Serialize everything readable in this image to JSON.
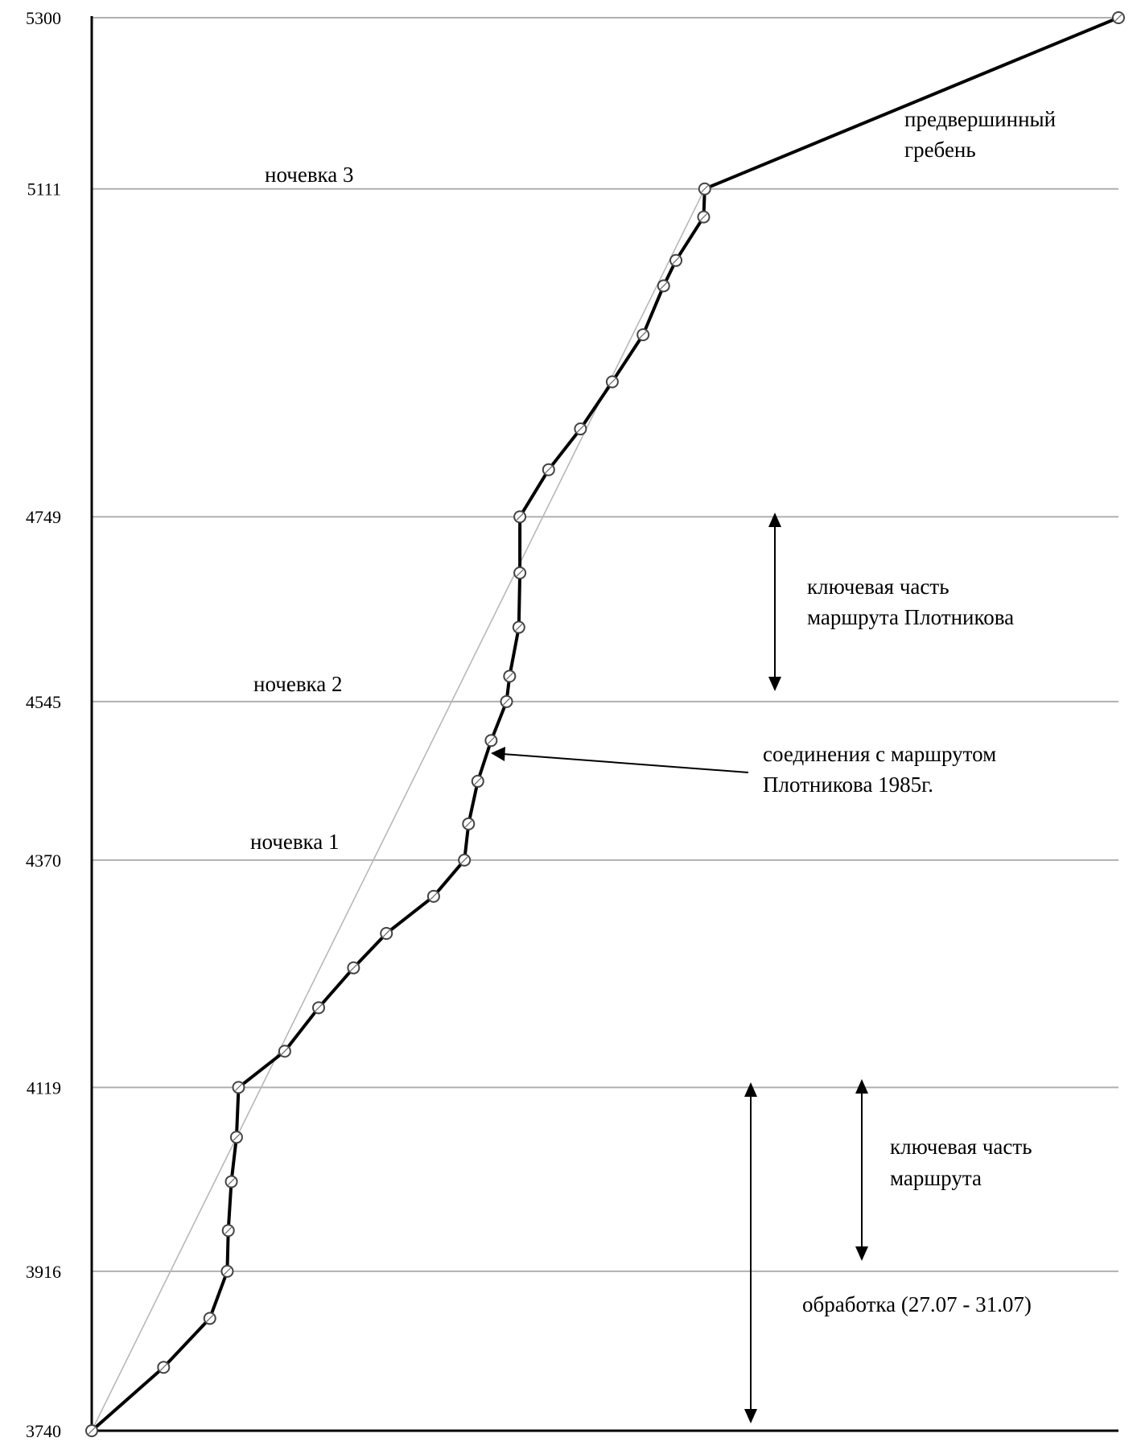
{
  "chart_data": {
    "type": "line",
    "title": "",
    "xlabel": "",
    "ylabel": "",
    "ylim": [
      3740,
      5300
    ],
    "xlim": [
      0,
      100
    ],
    "y_ticks": [
      "5300",
      "5111",
      "4749",
      "4545",
      "4370",
      "4119",
      "3916",
      "3740"
    ],
    "grid": true,
    "series": [
      {
        "name": "",
        "style": "thick-with-markers",
        "color": "#000000",
        "points": [
          [
            0,
            3740
          ],
          [
            7,
            3810
          ],
          [
            11.5,
            3864
          ],
          [
            13.2,
            3916
          ],
          [
            13.3,
            3961
          ],
          [
            13.6,
            4015
          ],
          [
            14.1,
            4064
          ],
          [
            14.3,
            4119
          ],
          [
            18.8,
            4159
          ],
          [
            22.1,
            4207
          ],
          [
            25.5,
            4251
          ],
          [
            28.7,
            4289
          ],
          [
            33.3,
            4330
          ],
          [
            36.3,
            4370
          ],
          [
            36.7,
            4410
          ],
          [
            37.6,
            4457
          ],
          [
            38.9,
            4502
          ],
          [
            40.4,
            4545
          ],
          [
            40.7,
            4573
          ],
          [
            41.6,
            4627
          ],
          [
            41.7,
            4687
          ],
          [
            41.7,
            4749
          ],
          [
            44.5,
            4801
          ],
          [
            47.6,
            4846
          ],
          [
            50.7,
            4898
          ],
          [
            53.7,
            4950
          ],
          [
            55.7,
            5004
          ],
          [
            56.9,
            5032
          ],
          [
            59.6,
            5080
          ],
          [
            59.7,
            5111
          ],
          [
            100,
            5300
          ]
        ]
      },
      {
        "name": "",
        "style": "thin-trend",
        "color": "#b4b4b4",
        "points": [
          [
            0,
            3740
          ],
          [
            59.7,
            5111
          ]
        ]
      }
    ],
    "labels": [
      {
        "text": "ночевка 3",
        "y": 5111
      },
      {
        "text": "ночевка 2",
        "y": 4545
      },
      {
        "text": "ночевка 1",
        "y": 4370
      }
    ],
    "annotations": [
      {
        "lines": [
          "предвершинный",
          "гребень"
        ]
      },
      {
        "lines": [
          "ключевая часть",
          "маршрута Плотникова"
        ],
        "range": [
          4545,
          4749
        ]
      },
      {
        "lines": [
          "соединения с маршрутом",
          "Плотникова 1985г."
        ]
      },
      {
        "lines": [
          "ключевая часть",
          "маршрута"
        ],
        "range": [
          3916,
          4119
        ]
      },
      {
        "lines": [
          "обработка (27.07 - 31.07)"
        ],
        "range": [
          3740,
          4119
        ]
      }
    ]
  }
}
